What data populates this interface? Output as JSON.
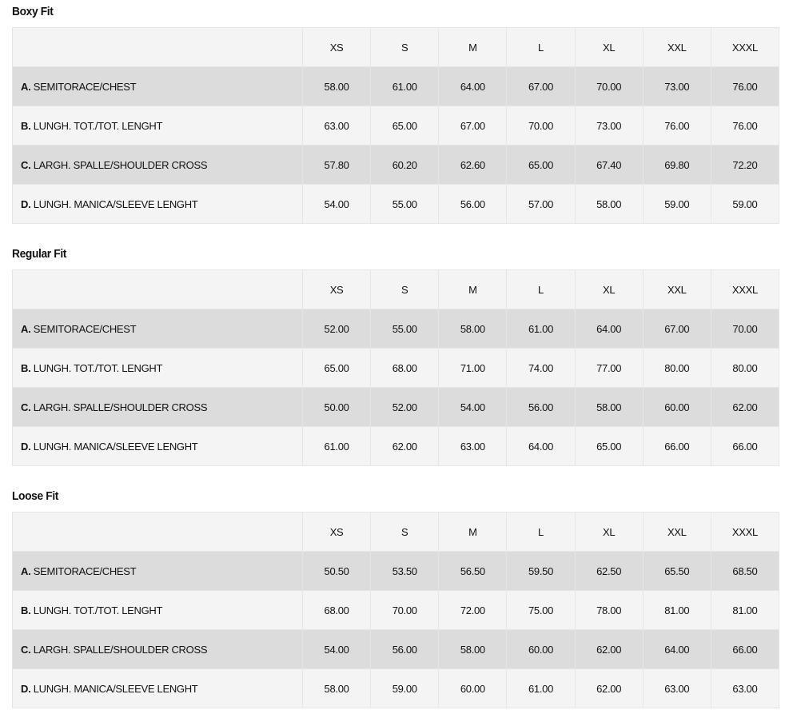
{
  "sizes": [
    "XS",
    "S",
    "M",
    "L",
    "XL",
    "XXL",
    "XXXL"
  ],
  "tables": [
    {
      "title": "Boxy Fit",
      "rows": [
        {
          "letter": "A.",
          "label": "SEMITORACE/CHEST",
          "values": [
            "58.00",
            "61.00",
            "64.00",
            "67.00",
            "70.00",
            "73.00",
            "76.00"
          ]
        },
        {
          "letter": "B.",
          "label": "LUNGH. TOT./TOT. LENGHT",
          "values": [
            "63.00",
            "65.00",
            "67.00",
            "70.00",
            "73.00",
            "76.00",
            "76.00"
          ]
        },
        {
          "letter": "C.",
          "label": "LARGH. SPALLE/SHOULDER CROSS",
          "values": [
            "57.80",
            "60.20",
            "62.60",
            "65.00",
            "67.40",
            "69.80",
            "72.20"
          ]
        },
        {
          "letter": "D.",
          "label": "LUNGH. MANICA/SLEEVE LENGHT",
          "values": [
            "54.00",
            "55.00",
            "56.00",
            "57.00",
            "58.00",
            "59.00",
            "59.00"
          ]
        }
      ]
    },
    {
      "title": "Regular Fit",
      "rows": [
        {
          "letter": "A.",
          "label": "SEMITORACE/CHEST",
          "values": [
            "52.00",
            "55.00",
            "58.00",
            "61.00",
            "64.00",
            "67.00",
            "70.00"
          ]
        },
        {
          "letter": "B.",
          "label": "LUNGH. TOT./TOT. LENGHT",
          "values": [
            "65.00",
            "68.00",
            "71.00",
            "74.00",
            "77.00",
            "80.00",
            "80.00"
          ]
        },
        {
          "letter": "C.",
          "label": "LARGH. SPALLE/SHOULDER CROSS",
          "values": [
            "50.00",
            "52.00",
            "54.00",
            "56.00",
            "58.00",
            "60.00",
            "62.00"
          ]
        },
        {
          "letter": "D.",
          "label": "LUNGH. MANICA/SLEEVE LENGHT",
          "values": [
            "61.00",
            "62.00",
            "63.00",
            "64.00",
            "65.00",
            "66.00",
            "66.00"
          ]
        }
      ]
    },
    {
      "title": "Loose Fit",
      "rows": [
        {
          "letter": "A.",
          "label": "SEMITORACE/CHEST",
          "values": [
            "50.50",
            "53.50",
            "56.50",
            "59.50",
            "62.50",
            "65.50",
            "68.50"
          ]
        },
        {
          "letter": "B.",
          "label": "LUNGH. TOT./TOT. LENGHT",
          "values": [
            "68.00",
            "70.00",
            "72.00",
            "75.00",
            "78.00",
            "81.00",
            "81.00"
          ]
        },
        {
          "letter": "C.",
          "label": "LARGH. SPALLE/SHOULDER CROSS",
          "values": [
            "54.00",
            "56.00",
            "58.00",
            "60.00",
            "62.00",
            "64.00",
            "66.00"
          ]
        },
        {
          "letter": "D.",
          "label": "LUNGH. MANICA/SLEEVE LENGHT",
          "values": [
            "58.00",
            "59.00",
            "60.00",
            "61.00",
            "62.00",
            "63.00",
            "63.00"
          ]
        }
      ]
    }
  ]
}
